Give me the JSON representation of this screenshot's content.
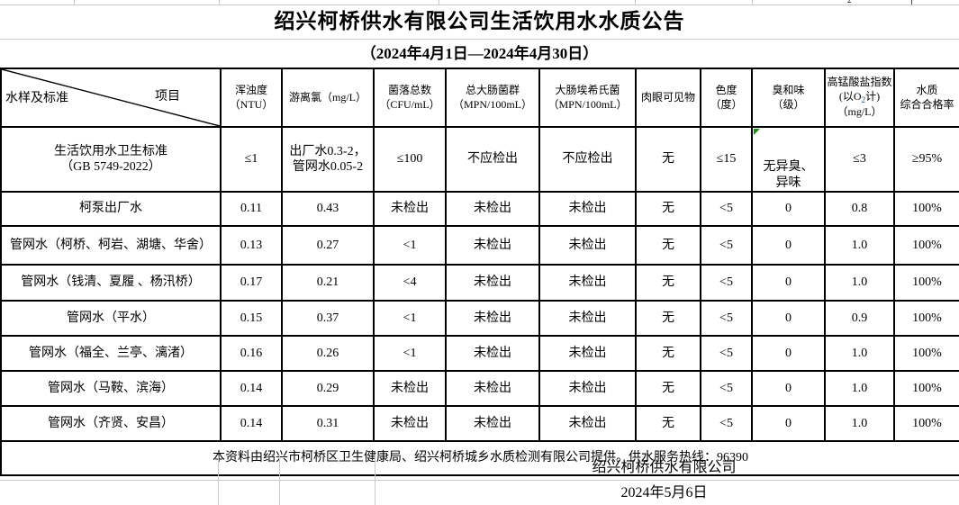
{
  "page": {
    "title": "绍兴柯桥供水有限公司生活饮用水水质公告",
    "subtitle": "（2024年4月1日—2024年4月30日）",
    "strip_fragment": "2"
  },
  "table": {
    "corner": {
      "bottom_left": "水样及标准",
      "top_right": "项目"
    },
    "headers": [
      "浑浊度\n（NTU）",
      "游离氯（mg/L）",
      "菌落总数\n（CFU/mL）",
      "总大肠菌群\n（MPN/100mL）",
      "大肠埃希氏菌\n（MPN/100mL）",
      "肉眼可见物",
      "色度\n（度）",
      "臭和味\n（级）",
      "水质\n综合合格率"
    ],
    "o2_header": {
      "p1": "高锰酸盐指数(以O",
      "sub": "2",
      "p2": "计)（mg/L）"
    },
    "standard": {
      "label": "生活饮用水卫生标准\n（GB 5749-2022）",
      "cells": [
        "≤1",
        "出厂水0.3-2，\n管网水0.05-2",
        "≤100",
        "不应检出",
        "不应检出",
        "无",
        "≤15",
        "无异臭、\n异味",
        "≤3",
        "≥95%"
      ]
    },
    "rows": [
      {
        "label": "柯泵出厂水",
        "cells": [
          "0.11",
          "0.43",
          "未检出",
          "未检出",
          "未检出",
          "无",
          "<5",
          "0",
          "0.8",
          "100%"
        ]
      },
      {
        "label": "管网水（柯桥、柯岩、湖塘、华舍）",
        "cells": [
          "0.13",
          "0.27",
          "<1",
          "未检出",
          "未检出",
          "无",
          "<5",
          "0",
          "1.0",
          "100%"
        ]
      },
      {
        "label": "管网水（钱清、夏履 、杨汛桥）",
        "cells": [
          "0.17",
          "0.21",
          "<4",
          "未检出",
          "未检出",
          "无",
          "<5",
          "0",
          "1.0",
          "100%"
        ]
      },
      {
        "label": "管网水（平水）",
        "cells": [
          "0.15",
          "0.37",
          "<1",
          "未检出",
          "未检出",
          "无",
          "<5",
          "0",
          "0.9",
          "100%"
        ]
      },
      {
        "label": "管网水（福全、兰亭、漓渚）",
        "cells": [
          "0.16",
          "0.26",
          "<1",
          "未检出",
          "未检出",
          "无",
          "<5",
          "0",
          "1.0",
          "100%"
        ]
      },
      {
        "label": "管网水（马鞍、滨海）",
        "cells": [
          "0.14",
          "0.29",
          "未检出",
          "未检出",
          "未检出",
          "无",
          "<5",
          "0",
          "1.0",
          "100%"
        ]
      },
      {
        "label": "管网水（齐贤、安昌）",
        "cells": [
          "0.14",
          "0.31",
          "未检出",
          "未检出",
          "未检出",
          "无",
          "<5",
          "0",
          "1.0",
          "100%"
        ]
      }
    ],
    "note": "本资料由绍兴市柯桥区卫生健康局、绍兴柯桥城乡水质检测有限公司提供。供水服务热线：96390"
  },
  "footer": {
    "company": "绍兴柯桥供水有限公司",
    "date": "2024年5月6日"
  },
  "colors": {
    "border": "#000000",
    "gridline": "#c9c9c9",
    "comment_indicator_green": "#1e8a1e",
    "o2_subscript_blue": "#1f4e79"
  }
}
